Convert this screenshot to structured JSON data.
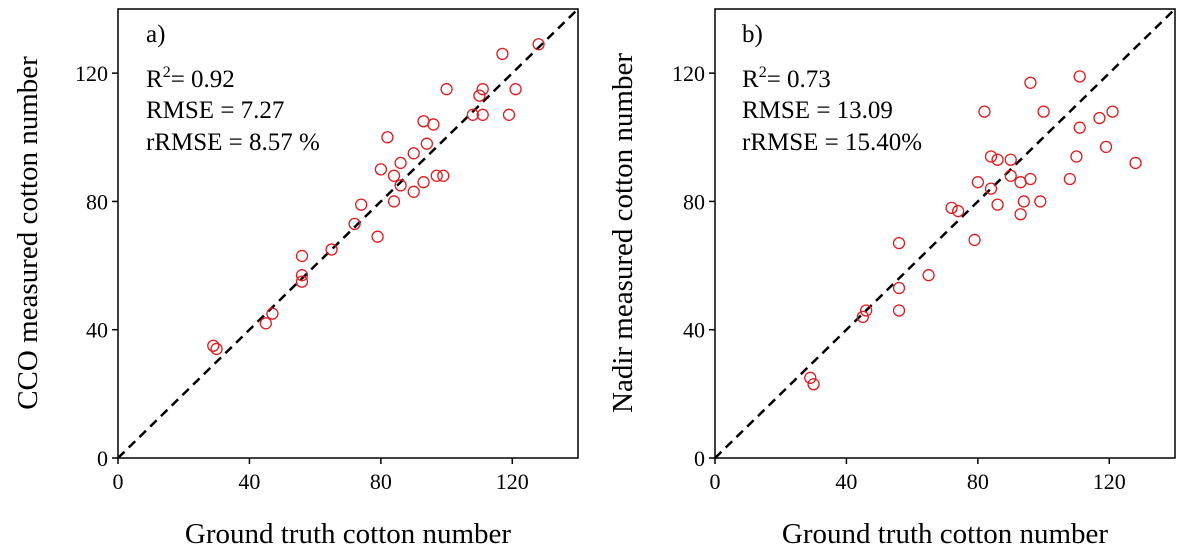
{
  "chart_data": [
    {
      "type": "scatter",
      "panel_label": "a)",
      "stats": {
        "r2_prefix": "R",
        "r2_sup": "2",
        "r2_value": "= 0.92",
        "rmse": "RMSE = 7.27",
        "rrmse": "rRMSE = 8.57 %"
      },
      "xlabel": "Ground truth cotton number",
      "ylabel": "CCO measured cotton number",
      "xlim": [
        0,
        140
      ],
      "ylim": [
        0,
        140
      ],
      "xticks": [
        "0",
        "40",
        "80",
        "120"
      ],
      "yticks": [
        "0",
        "40",
        "80",
        "120"
      ],
      "grid": false,
      "reference_line": "1:1 dashed",
      "marker_color": "#e31a1c",
      "x": [
        29,
        30,
        45,
        47,
        56,
        56,
        56,
        65,
        72,
        74,
        79,
        80,
        82,
        84,
        84,
        86,
        86,
        90,
        90,
        93,
        93,
        94,
        96,
        97,
        99,
        100,
        108,
        110,
        111,
        111,
        117,
        119,
        121,
        128
      ],
      "y": [
        35,
        34,
        42,
        45,
        63,
        57,
        55,
        65,
        73,
        79,
        69,
        90,
        100,
        80,
        88,
        92,
        85,
        95,
        83,
        105,
        86,
        98,
        104,
        88,
        88,
        115,
        107,
        113,
        115,
        107,
        126,
        107,
        115,
        129
      ]
    },
    {
      "type": "scatter",
      "panel_label": "b)",
      "stats": {
        "r2_prefix": "R",
        "r2_sup": "2",
        "r2_value": "= 0.73",
        "rmse": "RMSE = 13.09",
        "rrmse": "rRMSE = 15.40%"
      },
      "xlabel": "Ground truth cotton number",
      "ylabel": "Nadir measured cotton number",
      "xlim": [
        0,
        140
      ],
      "ylim": [
        0,
        140
      ],
      "xticks": [
        "0",
        "40",
        "80",
        "120"
      ],
      "yticks": [
        "0",
        "40",
        "80",
        "120"
      ],
      "grid": false,
      "reference_line": "1:1 dashed",
      "marker_color": "#e31a1c",
      "x": [
        29,
        30,
        45,
        46,
        56,
        56,
        56,
        65,
        72,
        74,
        79,
        80,
        82,
        84,
        84,
        86,
        86,
        90,
        90,
        93,
        93,
        94,
        96,
        96,
        99,
        100,
        108,
        110,
        111,
        111,
        117,
        119,
        121,
        128
      ],
      "y": [
        25,
        23,
        44,
        46,
        67,
        53,
        46,
        57,
        78,
        77,
        68,
        86,
        108,
        94,
        84,
        93,
        79,
        93,
        88,
        86,
        76,
        80,
        117,
        87,
        80,
        108,
        87,
        94,
        119,
        103,
        106,
        97,
        108,
        92
      ]
    }
  ]
}
